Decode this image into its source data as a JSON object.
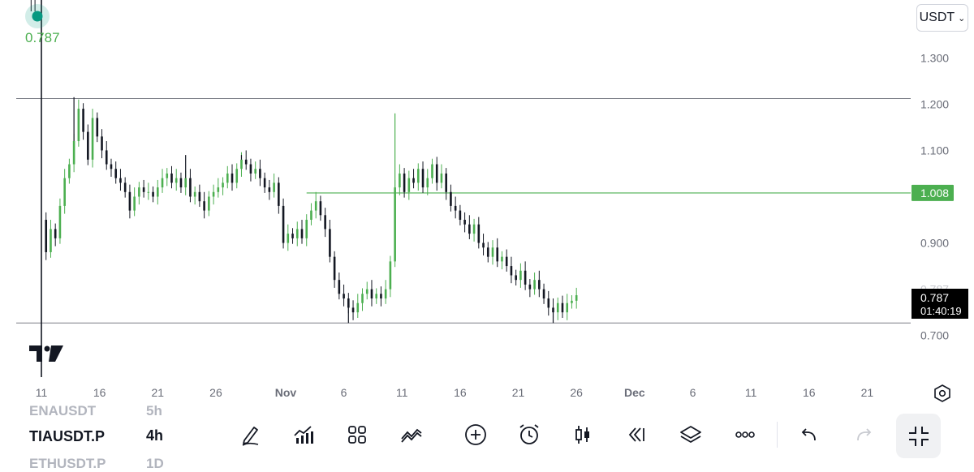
{
  "symbols": {
    "prev": {
      "name": "ENAUSDT",
      "tf": "5h"
    },
    "current": {
      "name": "TIAUSDT.P",
      "tf": "4h"
    },
    "next": {
      "name": "ETHUSDT.P",
      "tf": "1D"
    }
  },
  "currency": "USDT",
  "icons": [
    "pencil-icon",
    "indicators-icon",
    "layout-grid-icon",
    "compare-icon",
    "plus-circle-icon",
    "alarm-icon",
    "candle-icon",
    "replay-icon",
    "layers-icon",
    "more-icon",
    "undo-icon",
    "redo-icon",
    "fullscreen-exit-icon",
    "settings-icon",
    "tradingview-logo"
  ],
  "colors": {
    "up": "#4caf50",
    "down": "#131722",
    "teal": "#089981",
    "hline": "#7b7e87",
    "green_line": "#4caf50",
    "last_bg": "#000000"
  },
  "chart_data": {
    "type": "candlestick",
    "price_ticks": [
      "1.300",
      "1.200",
      "1.100",
      "0.900",
      "0.700"
    ],
    "price_tick_values": [
      1.3,
      1.2,
      1.1,
      0.9,
      0.7
    ],
    "ylim": [
      0.61,
      1.425
    ],
    "date_ticks": [
      "11",
      "16",
      "21",
      "26",
      "Nov",
      "6",
      "11",
      "16",
      "21",
      "26",
      "Dec",
      "6",
      "11",
      "16",
      "21"
    ],
    "date_tick_days": [
      0,
      5,
      10,
      15,
      21,
      26,
      31,
      36,
      41,
      46,
      51,
      56,
      61,
      66,
      71
    ],
    "horizontal_lines": [
      1.212,
      0.727
    ],
    "green_level": {
      "value": 1.008,
      "label": "1.008"
    },
    "last_price": {
      "value": 0.787,
      "label": "0.787",
      "countdown": "01:40:19"
    },
    "marker": {
      "label": "0.787"
    },
    "hidden_tick": "0.787",
    "close_path": [
      [
        0,
        0.95
      ],
      [
        0.4,
        0.88
      ],
      [
        0.8,
        0.93
      ],
      [
        1.2,
        0.91
      ],
      [
        1.6,
        0.98
      ],
      [
        2.0,
        1.04
      ],
      [
        2.4,
        1.07
      ],
      [
        2.8,
        1.12
      ],
      [
        3.2,
        1.19
      ],
      [
        3.6,
        1.14
      ],
      [
        4.0,
        1.08
      ],
      [
        4.4,
        1.17
      ],
      [
        4.8,
        1.13
      ],
      [
        5.2,
        1.1
      ],
      [
        5.6,
        1.07
      ],
      [
        6.0,
        1.06
      ],
      [
        6.4,
        1.04
      ],
      [
        6.8,
        1.03
      ],
      [
        7.2,
        1.01
      ],
      [
        7.6,
        0.97
      ],
      [
        8.0,
        1.0
      ],
      [
        8.4,
        1.02
      ],
      [
        8.8,
        1.01
      ],
      [
        9.2,
        1.01
      ],
      [
        9.6,
        1.0
      ],
      [
        10.0,
        1.02
      ],
      [
        10.4,
        1.04
      ],
      [
        10.8,
        1.05
      ],
      [
        11.2,
        1.03
      ],
      [
        11.6,
        1.04
      ],
      [
        12.0,
        1.02
      ],
      [
        12.4,
        1.04
      ],
      [
        12.8,
        1.0
      ],
      [
        13.2,
        1.01
      ],
      [
        13.6,
        0.99
      ],
      [
        14.0,
        0.97
      ],
      [
        14.4,
        1.0
      ],
      [
        14.8,
        1.01
      ],
      [
        15.2,
        1.02
      ],
      [
        15.6,
        1.03
      ],
      [
        16.0,
        1.05
      ],
      [
        16.4,
        1.03
      ],
      [
        16.8,
        1.06
      ],
      [
        17.2,
        1.08
      ],
      [
        17.6,
        1.07
      ],
      [
        18.0,
        1.05
      ],
      [
        18.4,
        1.06
      ],
      [
        18.8,
        1.04
      ],
      [
        19.2,
        1.02
      ],
      [
        19.6,
        1.01
      ],
      [
        20.0,
        1.03
      ],
      [
        20.4,
        0.98
      ],
      [
        20.8,
        0.9
      ],
      [
        21.2,
        0.92
      ],
      [
        21.6,
        0.91
      ],
      [
        22.0,
        0.93
      ],
      [
        22.4,
        0.91
      ],
      [
        22.8,
        0.95
      ],
      [
        23.2,
        0.97
      ],
      [
        23.6,
        0.99
      ],
      [
        24.0,
        0.96
      ],
      [
        24.4,
        0.93
      ],
      [
        24.8,
        0.87
      ],
      [
        25.2,
        0.82
      ],
      [
        25.6,
        0.79
      ],
      [
        26.0,
        0.78
      ],
      [
        26.4,
        0.76
      ],
      [
        26.8,
        0.75
      ],
      [
        27.2,
        0.77
      ],
      [
        27.6,
        0.79
      ],
      [
        28.0,
        0.8
      ],
      [
        28.4,
        0.78
      ],
      [
        28.8,
        0.79
      ],
      [
        29.2,
        0.78
      ],
      [
        29.6,
        0.8
      ],
      [
        30.0,
        0.86
      ],
      [
        30.4,
        1.02
      ],
      [
        30.8,
        1.05
      ],
      [
        31.2,
        1.01
      ],
      [
        31.6,
        1.04
      ],
      [
        32.0,
        1.03
      ],
      [
        32.4,
        1.06
      ],
      [
        32.8,
        1.02
      ],
      [
        33.2,
        1.04
      ],
      [
        33.6,
        1.07
      ],
      [
        34.0,
        1.03
      ],
      [
        34.4,
        1.05
      ],
      [
        34.8,
        1.01
      ],
      [
        35.2,
        0.98
      ],
      [
        35.6,
        0.97
      ],
      [
        36.0,
        0.95
      ],
      [
        36.4,
        0.94
      ],
      [
        36.8,
        0.92
      ],
      [
        37.2,
        0.94
      ],
      [
        37.6,
        0.9
      ],
      [
        38.0,
        0.89
      ],
      [
        38.4,
        0.87
      ],
      [
        38.8,
        0.89
      ],
      [
        39.2,
        0.86
      ],
      [
        39.6,
        0.87
      ],
      [
        40.0,
        0.85
      ],
      [
        40.4,
        0.83
      ],
      [
        40.8,
        0.82
      ],
      [
        41.2,
        0.84
      ],
      [
        41.6,
        0.81
      ],
      [
        42.0,
        0.8
      ],
      [
        42.4,
        0.82
      ],
      [
        42.8,
        0.8
      ],
      [
        43.2,
        0.78
      ],
      [
        43.6,
        0.76
      ],
      [
        44.0,
        0.75
      ],
      [
        44.4,
        0.77
      ],
      [
        44.8,
        0.75
      ],
      [
        45.2,
        0.77
      ],
      [
        45.6,
        0.775
      ],
      [
        46.0,
        0.787
      ]
    ],
    "spikes": [
      {
        "day": 2.8,
        "high": 1.215
      },
      {
        "day": 30.4,
        "high": 1.18
      },
      {
        "day": 26.4,
        "low": 0.727
      },
      {
        "day": 44.0,
        "low": 0.727
      },
      {
        "day": 12.4,
        "high": 1.09
      },
      {
        "day": 17.2,
        "high": 1.09
      }
    ]
  }
}
